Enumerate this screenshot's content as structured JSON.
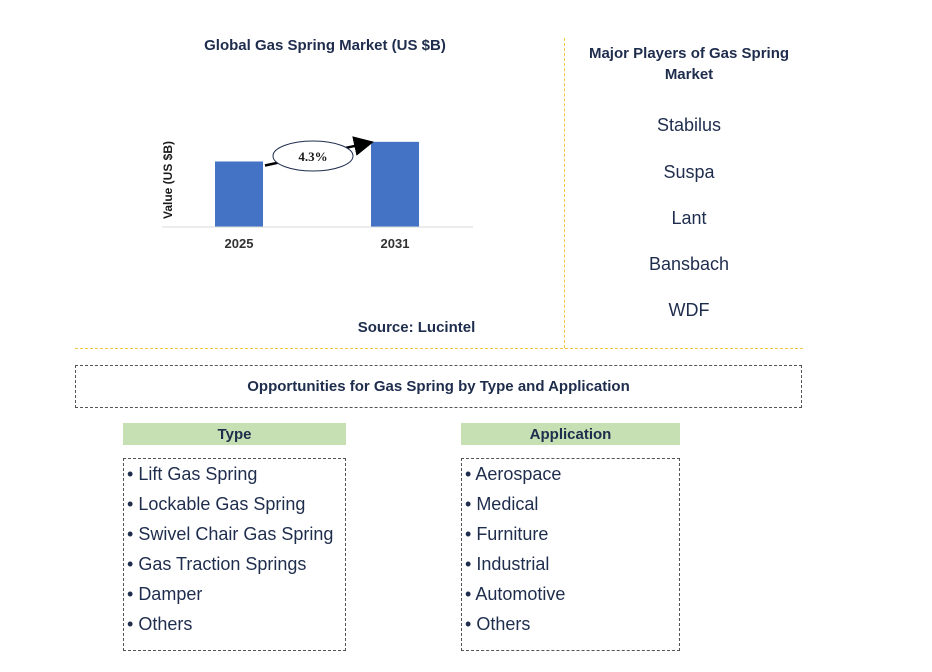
{
  "chart_data": {
    "type": "bar",
    "title": "Global Gas Spring Market (US $B)",
    "ylabel": "Value (US $B)",
    "categories": [
      "2025",
      "2031"
    ],
    "values": [
      1.0,
      1.3
    ],
    "ylim": [
      0,
      1.45
    ],
    "bar_color": "#4472c4",
    "annotation": {
      "label": "4.3%",
      "type": "CAGR arrow from 2025 to 2031"
    },
    "grid": false
  },
  "source": "Source: Lucintel",
  "players": {
    "title": "Major Players of Gas Spring Market",
    "items": [
      "Stabilus",
      "Suspa",
      "Lant",
      "Bansbach",
      "WDF"
    ]
  },
  "opportunities": {
    "title": "Opportunities for Gas Spring by Type and Application",
    "type": {
      "header": "Type",
      "items": [
        "Lift Gas Spring",
        "Lockable Gas Spring",
        "Swivel Chair Gas Spring",
        "Gas Traction Springs",
        "Damper",
        "Others"
      ]
    },
    "application": {
      "header": "Application",
      "items": [
        "Aerospace",
        "Medical",
        "Furniture",
        "Industrial",
        "Automotive",
        "Others"
      ]
    },
    "header_color": "#c6e0b4"
  },
  "colors": {
    "text": "#1f2d4d",
    "divider": "#f2c744"
  }
}
